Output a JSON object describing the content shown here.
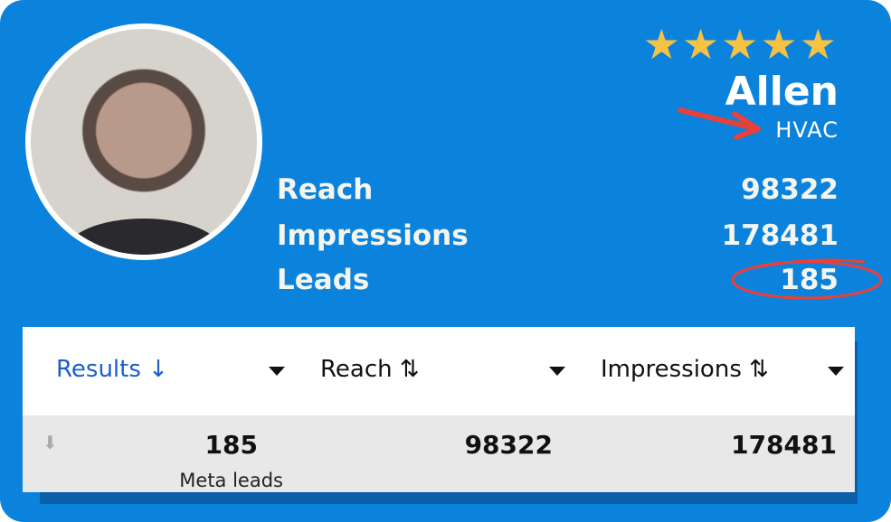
{
  "profile": {
    "name": "Allen",
    "trade": "HVAC",
    "rating": 5,
    "rating_max": 5,
    "stars": "★★★★★"
  },
  "stats": [
    {
      "label": "Reach",
      "value": "98322"
    },
    {
      "label": "Impressions",
      "value": "178481"
    },
    {
      "label": "Leads",
      "value": "185"
    }
  ],
  "table": {
    "columns": [
      {
        "header": "Results ↓",
        "value": "185",
        "sub": "Meta leads"
      },
      {
        "header": "Reach ⇅",
        "value": "98322"
      },
      {
        "header": "Impressions ⇅",
        "value": "178481"
      }
    ]
  },
  "colors": {
    "card": "#0b83dc",
    "stars": "#f6c244",
    "annotation": "#e8403a",
    "active_header": "#1a5fc8"
  }
}
